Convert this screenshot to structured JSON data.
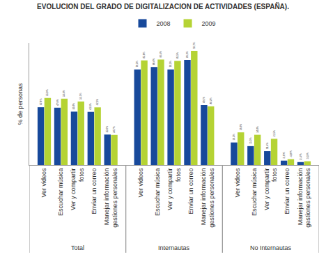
{
  "chart_data": {
    "type": "bar",
    "title": "EVOLUCION DEL GRADO DE DIGITALIZACION DE ACTIVIDADES (ESPAÑA).",
    "y_label": "% de personas",
    "categories": [
      "Ver videos",
      "Escuchar música",
      "Ver y compartir fotos",
      "Enviar un correo",
      "Manejar información gestiones personales",
      "Ver videos",
      "Escuchar música",
      "Ver y compartir fotos",
      "Enviar un correo",
      "Manejar información gestiones personales",
      "Ver videos",
      "Escuchar música",
      "Ver y compartir fotos",
      "Enviar un correo",
      "Manejar información gestiones personales"
    ],
    "groups": [
      "Total",
      "Total",
      "Total",
      "Total",
      "Total",
      "Internautas",
      "Internautas",
      "Internautas",
      "Internautas",
      "Internautas",
      "No Internautas",
      "No Internautas",
      "No Internautas",
      "No Internautas",
      "No Internautas"
    ],
    "series": [
      {
        "name": "2008",
        "color": "#17499b",
        "values": [
          47.4,
          47.0,
          43.8,
          43.6,
          25.0,
          78.5,
          80.4,
          78.5,
          86.3,
          49.1,
          18.5,
          15.5,
          11.4,
          3.6,
          2.4
        ],
        "value_labels": [
          "47,4%",
          "47,0%",
          "43,8%",
          "43,6%",
          "25,0%",
          "78,5%",
          "80,4%",
          "78,5%",
          "86,3%",
          "49,1%",
          "18,5%",
          "15,5%",
          "11,4%",
          "3,6%",
          "2,4%"
        ]
      },
      {
        "name": "2009",
        "color": "#b5d334",
        "values": [
          55.0,
          54.4,
          52.1,
          47.3,
          24.7,
          85.8,
          86.6,
          85.5,
          93.7,
          48.2,
          26.8,
          24.8,
          21.5,
          4.8,
          3.1
        ],
        "value_labels": [
          "55,0%",
          "54,4%",
          "52,1%",
          "47,3%",
          "24,7%",
          "85,8%",
          "86,6%",
          "85,5%",
          "93,7%",
          "48,2%",
          "26,8%",
          "24,8%",
          "21,5%",
          "4,8%",
          "3,1%"
        ]
      }
    ],
    "ylim": [
      0,
      100
    ],
    "yticks": [],
    "tick_labels": "x",
    "data_labels": true,
    "legend": "top",
    "grid": false
  }
}
